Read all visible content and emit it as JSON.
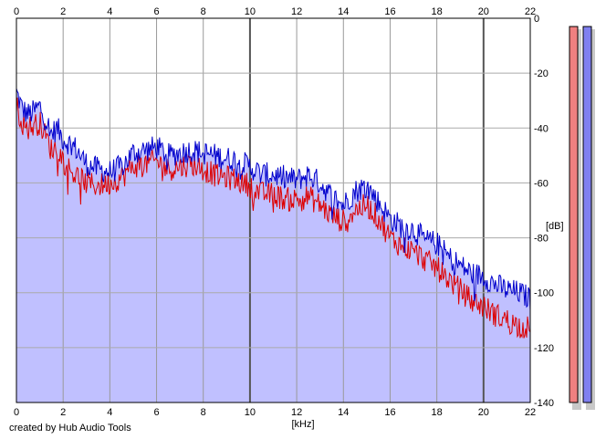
{
  "credit": "created by Hub Audio Tools",
  "chart_data": {
    "type": "line",
    "xlabel": "[kHz]",
    "ylabel": "[dB]",
    "xlim": [
      0,
      22
    ],
    "ylim": [
      -140,
      0
    ],
    "x_ticks": [
      0,
      2,
      4,
      6,
      8,
      10,
      12,
      14,
      16,
      18,
      20,
      22
    ],
    "y_ticks": [
      0,
      -20,
      -40,
      -60,
      -80,
      -100,
      -120,
      -140
    ],
    "grid": true,
    "fill_color": "#c0c0ff",
    "series": [
      {
        "color": "#0000cc",
        "x": [
          0,
          0.25,
          0.5,
          0.75,
          1,
          1.25,
          1.5,
          1.75,
          2,
          2.5,
          3,
          3.5,
          4,
          4.5,
          5,
          5.5,
          6,
          6.5,
          7,
          7.5,
          8,
          8.5,
          9,
          9.5,
          10,
          10.5,
          11,
          11.5,
          12,
          12.5,
          13,
          13.5,
          14,
          14.5,
          15,
          15.5,
          16,
          16.5,
          17,
          17.5,
          18,
          18.5,
          19,
          19.5,
          20,
          20.5,
          21,
          21.5,
          22
        ],
        "y": [
          -27,
          -33,
          -35,
          -34,
          -32,
          -37,
          -42,
          -40,
          -44,
          -47,
          -53,
          -55,
          -56,
          -54,
          -49,
          -48,
          -47,
          -50,
          -49,
          -48,
          -49,
          -50,
          -51,
          -52,
          -54,
          -57,
          -57,
          -58,
          -59,
          -57,
          -60,
          -65,
          -68,
          -63,
          -61,
          -67,
          -73,
          -76,
          -77,
          -81,
          -82,
          -87,
          -90,
          -93,
          -94,
          -97,
          -99,
          -100,
          -102
        ]
      },
      {
        "color": "#dd0000",
        "x": [
          0,
          0.25,
          0.5,
          0.75,
          1,
          1.25,
          1.5,
          1.75,
          2,
          2.5,
          3,
          3.5,
          4,
          4.5,
          5,
          5.5,
          6,
          6.5,
          7,
          7.5,
          8,
          8.5,
          9,
          9.5,
          10,
          10.5,
          11,
          11.5,
          12,
          12.5,
          13,
          13.5,
          14,
          14.5,
          15,
          15.5,
          16,
          16.5,
          17,
          17.5,
          18,
          18.5,
          19,
          19.5,
          20,
          20.5,
          21,
          21.5,
          22
        ],
        "y": [
          -32,
          -38,
          -40,
          -39,
          -38,
          -43,
          -48,
          -47,
          -52,
          -57,
          -60,
          -61,
          -60,
          -58,
          -54,
          -53,
          -52,
          -55,
          -54,
          -53,
          -55,
          -57,
          -58,
          -59,
          -61,
          -64,
          -64,
          -66,
          -66,
          -65,
          -68,
          -72,
          -74,
          -70,
          -68,
          -73,
          -80,
          -83,
          -85,
          -88,
          -91,
          -95,
          -99,
          -103,
          -105,
          -108,
          -110,
          -112,
          -113
        ]
      }
    ],
    "meters": [
      {
        "color": "#f08080",
        "level_db": -9
      },
      {
        "color": "#8080f0",
        "level_db": -9
      }
    ]
  }
}
